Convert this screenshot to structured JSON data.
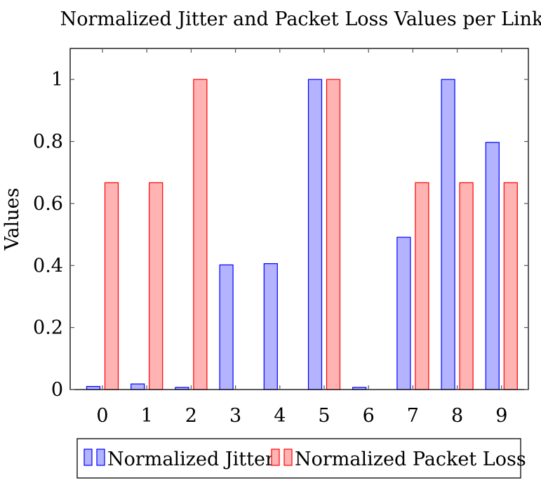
{
  "chart_data": {
    "type": "bar",
    "title": "Normalized Jitter and Packet Loss Values per Link",
    "xlabel": "",
    "ylabel": "Values",
    "categories": [
      "0",
      "1",
      "2",
      "3",
      "4",
      "5",
      "6",
      "7",
      "8",
      "9"
    ],
    "y_ticks": [
      "0",
      "0.2",
      "0.4",
      "0.6",
      "0.8",
      "1"
    ],
    "ylim": [
      0,
      1.1
    ],
    "grid": false,
    "legend_position": "bottom",
    "series": [
      {
        "name": "Normalized Jitter",
        "values": [
          0.01,
          0.018,
          0.007,
          0.402,
          0.406,
          1.0,
          0.007,
          0.491,
          1.0,
          0.797
        ],
        "fill": "#b3b3ff",
        "stroke": "#0000ff"
      },
      {
        "name": "Normalized Packet Loss",
        "values": [
          0.667,
          0.667,
          1.0,
          0.0,
          0.0,
          1.0,
          0.0,
          0.667,
          0.667,
          0.667
        ],
        "fill": "#ffb3b3",
        "stroke": "#ff0000"
      }
    ]
  }
}
